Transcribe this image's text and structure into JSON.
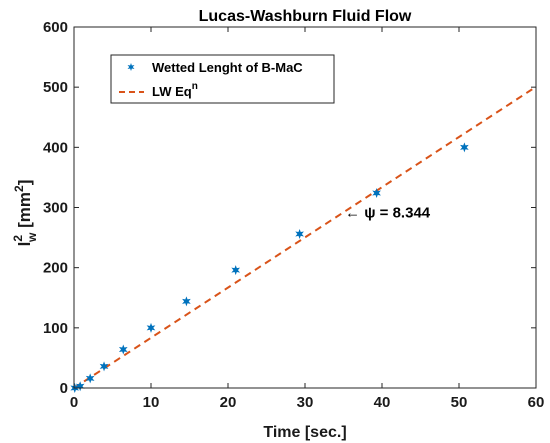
{
  "chart_data": {
    "type": "scatter",
    "title": "Lucas-Washburn Fluid Flow",
    "xlabel": "Time [sec.]",
    "ylabel": {
      "base": "l",
      "sub": "w",
      "sup": "2",
      "unit_open": " [mm",
      "unit_sup": "2",
      "unit_close": "]"
    },
    "xlim": [
      0,
      60
    ],
    "ylim": [
      0,
      600
    ],
    "xticks": [
      "0",
      "10",
      "20",
      "30",
      "40",
      "50",
      "60"
    ],
    "yticks": [
      "0",
      "100",
      "200",
      "300",
      "400",
      "500",
      "600"
    ],
    "grid": false,
    "legend_position": "top-left",
    "series": [
      {
        "name": "Wetted Lenght of B-MaC",
        "kind": "markers",
        "marker": "star",
        "color": "#0072BD",
        "points": [
          {
            "x": 0.1,
            "y": 0
          },
          {
            "x": 0.8,
            "y": 3
          },
          {
            "x": 2.1,
            "y": 16
          },
          {
            "x": 3.9,
            "y": 36
          },
          {
            "x": 6.4,
            "y": 64
          },
          {
            "x": 10.0,
            "y": 100
          },
          {
            "x": 14.6,
            "y": 144
          },
          {
            "x": 21.0,
            "y": 196
          },
          {
            "x": 29.3,
            "y": 256
          },
          {
            "x": 39.3,
            "y": 324
          },
          {
            "x": 50.7,
            "y": 400
          }
        ]
      },
      {
        "name": "LW Eq",
        "name_sup": "n",
        "kind": "dashed-line",
        "color": "#D95319",
        "points": [
          {
            "x": 0,
            "y": 0
          },
          {
            "x": 60,
            "y": 500.6
          }
        ]
      }
    ],
    "annotation": {
      "text": "← ψ = 8.344",
      "x": 35.2,
      "y": 292
    }
  }
}
